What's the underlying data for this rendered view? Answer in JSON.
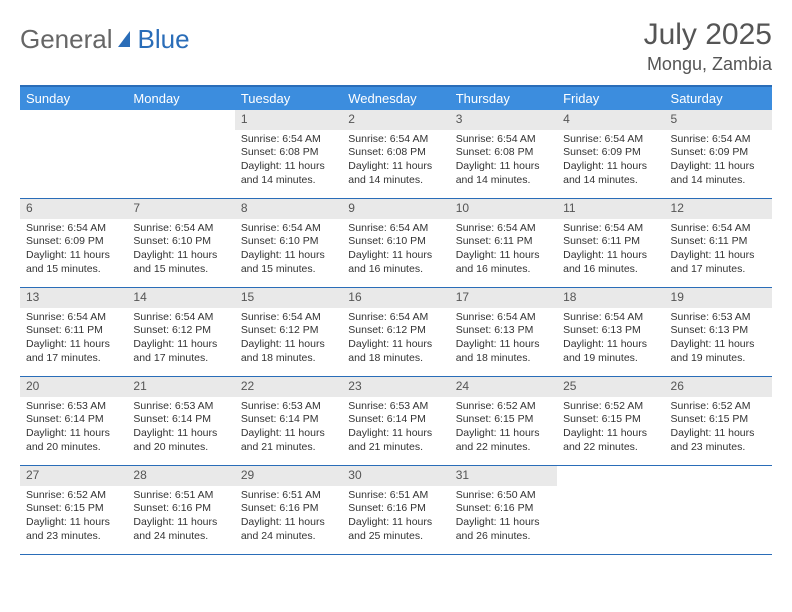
{
  "brand": {
    "part1": "General",
    "part2": "Blue"
  },
  "title": {
    "month": "July 2025",
    "location": "Mongu, Zambia"
  },
  "dayNames": [
    "Sunday",
    "Monday",
    "Tuesday",
    "Wednesday",
    "Thursday",
    "Friday",
    "Saturday"
  ],
  "colors": {
    "headerBar": "#3c8dde",
    "ruleLine": "#2a6db8",
    "numStrip": "#e9e9e9",
    "text": "#333333"
  },
  "weeks": [
    [
      null,
      null,
      {
        "n": "1",
        "sr": "6:54 AM",
        "ss": "6:08 PM",
        "dl": "11 hours and 14 minutes."
      },
      {
        "n": "2",
        "sr": "6:54 AM",
        "ss": "6:08 PM",
        "dl": "11 hours and 14 minutes."
      },
      {
        "n": "3",
        "sr": "6:54 AM",
        "ss": "6:08 PM",
        "dl": "11 hours and 14 minutes."
      },
      {
        "n": "4",
        "sr": "6:54 AM",
        "ss": "6:09 PM",
        "dl": "11 hours and 14 minutes."
      },
      {
        "n": "5",
        "sr": "6:54 AM",
        "ss": "6:09 PM",
        "dl": "11 hours and 14 minutes."
      }
    ],
    [
      {
        "n": "6",
        "sr": "6:54 AM",
        "ss": "6:09 PM",
        "dl": "11 hours and 15 minutes."
      },
      {
        "n": "7",
        "sr": "6:54 AM",
        "ss": "6:10 PM",
        "dl": "11 hours and 15 minutes."
      },
      {
        "n": "8",
        "sr": "6:54 AM",
        "ss": "6:10 PM",
        "dl": "11 hours and 15 minutes."
      },
      {
        "n": "9",
        "sr": "6:54 AM",
        "ss": "6:10 PM",
        "dl": "11 hours and 16 minutes."
      },
      {
        "n": "10",
        "sr": "6:54 AM",
        "ss": "6:11 PM",
        "dl": "11 hours and 16 minutes."
      },
      {
        "n": "11",
        "sr": "6:54 AM",
        "ss": "6:11 PM",
        "dl": "11 hours and 16 minutes."
      },
      {
        "n": "12",
        "sr": "6:54 AM",
        "ss": "6:11 PM",
        "dl": "11 hours and 17 minutes."
      }
    ],
    [
      {
        "n": "13",
        "sr": "6:54 AM",
        "ss": "6:11 PM",
        "dl": "11 hours and 17 minutes."
      },
      {
        "n": "14",
        "sr": "6:54 AM",
        "ss": "6:12 PM",
        "dl": "11 hours and 17 minutes."
      },
      {
        "n": "15",
        "sr": "6:54 AM",
        "ss": "6:12 PM",
        "dl": "11 hours and 18 minutes."
      },
      {
        "n": "16",
        "sr": "6:54 AM",
        "ss": "6:12 PM",
        "dl": "11 hours and 18 minutes."
      },
      {
        "n": "17",
        "sr": "6:54 AM",
        "ss": "6:13 PM",
        "dl": "11 hours and 18 minutes."
      },
      {
        "n": "18",
        "sr": "6:54 AM",
        "ss": "6:13 PM",
        "dl": "11 hours and 19 minutes."
      },
      {
        "n": "19",
        "sr": "6:53 AM",
        "ss": "6:13 PM",
        "dl": "11 hours and 19 minutes."
      }
    ],
    [
      {
        "n": "20",
        "sr": "6:53 AM",
        "ss": "6:14 PM",
        "dl": "11 hours and 20 minutes."
      },
      {
        "n": "21",
        "sr": "6:53 AM",
        "ss": "6:14 PM",
        "dl": "11 hours and 20 minutes."
      },
      {
        "n": "22",
        "sr": "6:53 AM",
        "ss": "6:14 PM",
        "dl": "11 hours and 21 minutes."
      },
      {
        "n": "23",
        "sr": "6:53 AM",
        "ss": "6:14 PM",
        "dl": "11 hours and 21 minutes."
      },
      {
        "n": "24",
        "sr": "6:52 AM",
        "ss": "6:15 PM",
        "dl": "11 hours and 22 minutes."
      },
      {
        "n": "25",
        "sr": "6:52 AM",
        "ss": "6:15 PM",
        "dl": "11 hours and 22 minutes."
      },
      {
        "n": "26",
        "sr": "6:52 AM",
        "ss": "6:15 PM",
        "dl": "11 hours and 23 minutes."
      }
    ],
    [
      {
        "n": "27",
        "sr": "6:52 AM",
        "ss": "6:15 PM",
        "dl": "11 hours and 23 minutes."
      },
      {
        "n": "28",
        "sr": "6:51 AM",
        "ss": "6:16 PM",
        "dl": "11 hours and 24 minutes."
      },
      {
        "n": "29",
        "sr": "6:51 AM",
        "ss": "6:16 PM",
        "dl": "11 hours and 24 minutes."
      },
      {
        "n": "30",
        "sr": "6:51 AM",
        "ss": "6:16 PM",
        "dl": "11 hours and 25 minutes."
      },
      {
        "n": "31",
        "sr": "6:50 AM",
        "ss": "6:16 PM",
        "dl": "11 hours and 26 minutes."
      },
      null,
      null
    ]
  ],
  "labels": {
    "sunrise": "Sunrise:",
    "sunset": "Sunset:",
    "daylight": "Daylight:"
  }
}
